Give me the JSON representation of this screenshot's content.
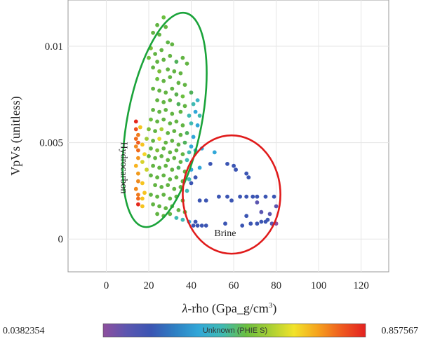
{
  "chart_data": {
    "type": "scatter",
    "xlabel_symbol": "λ",
    "xlabel_text": "-rho (Gpa_g/cm",
    "xlabel_sup": "3",
    "xlabel_close": ")",
    "ylabel": "VpVs (unitless)",
    "xlim": [
      -18,
      133
    ],
    "ylim": [
      -0.0017,
      0.0124
    ],
    "xticks": [
      0,
      20,
      40,
      60,
      80,
      100,
      120
    ],
    "xtick_labels": [
      "0",
      "20",
      "40",
      "60",
      "80",
      "100",
      "120"
    ],
    "yticks": [
      0,
      0.005,
      0.01
    ],
    "ytick_labels": [
      "0",
      "0.005",
      "0.01"
    ],
    "grid": true,
    "annotations": [
      {
        "text": "Hydrocarbon",
        "x": 7,
        "y": 0.0037,
        "rotate": 90
      },
      {
        "text": "Brine",
        "x": 56,
        "y": 0.00015
      }
    ],
    "ellipses": [
      {
        "name": "hydrocarbon-ellipse",
        "color": "#1aa33a",
        "cx": 27.5,
        "cy": 0.00618,
        "rx": 17.5,
        "ry": 0.00565,
        "rotate": 11
      },
      {
        "name": "brine-ellipse",
        "color": "#e01b1b",
        "cx": 59,
        "cy": 0.00231,
        "rx": 23,
        "ry": 0.00307,
        "rotate": 0
      }
    ],
    "colorbar": {
      "min_label": "0.0382354",
      "max_label": "0.857567",
      "title": "Unknown (PHIE S)",
      "stops": [
        "#8e4f9e",
        "#5b56b0",
        "#3b55b3",
        "#2e7fc3",
        "#31a7d8",
        "#3fbab2",
        "#6bbf3f",
        "#a8cf34",
        "#f2e32a",
        "#f6a21d",
        "#ef5a1f",
        "#e32121"
      ]
    },
    "series": [
      {
        "values": [
          [
            14,
            0.0061,
            "#e5281c"
          ],
          [
            14,
            0.0057,
            "#ef4e1c"
          ],
          [
            15,
            0.0054,
            "#f07c1d"
          ],
          [
            14,
            0.0052,
            "#f06a1c"
          ],
          [
            15,
            0.005,
            "#ee5a1e"
          ],
          [
            14,
            0.0048,
            "#f28a1e"
          ],
          [
            15,
            0.0046,
            "#ef6a1c"
          ],
          [
            15,
            0.0042,
            "#f3951e"
          ],
          [
            14,
            0.0038,
            "#f8b420"
          ],
          [
            15,
            0.0034,
            "#f19a1c"
          ],
          [
            15,
            0.003,
            "#ef8a1c"
          ],
          [
            14,
            0.0026,
            "#f28a1c"
          ],
          [
            15,
            0.0023,
            "#ef7a1c"
          ],
          [
            15,
            0.0021,
            "#f06a1c"
          ],
          [
            15,
            0.0018,
            "#e5281c"
          ],
          [
            16,
            0.0058,
            "#f6c41f"
          ],
          [
            17,
            0.0049,
            "#f6c41f"
          ],
          [
            18,
            0.0044,
            "#f4d428"
          ],
          [
            17,
            0.004,
            "#d7d22c"
          ],
          [
            19,
            0.0036,
            "#c9d32e"
          ],
          [
            17,
            0.0029,
            "#f6c41f"
          ],
          [
            18,
            0.0024,
            "#f6c41f"
          ],
          [
            17,
            0.0021,
            "#f6c41f"
          ],
          [
            17,
            0.0017,
            "#f6c41f"
          ],
          [
            22,
            0.0107,
            "#62b443"
          ],
          [
            24,
            0.0111,
            "#62b443"
          ],
          [
            27,
            0.0115,
            "#6bbf3f"
          ],
          [
            28,
            0.011,
            "#62b443"
          ],
          [
            25,
            0.0106,
            "#62b443"
          ],
          [
            21,
            0.0099,
            "#7bbd3a"
          ],
          [
            23,
            0.0096,
            "#62b443"
          ],
          [
            26,
            0.0098,
            "#62b443"
          ],
          [
            29,
            0.0102,
            "#5db446"
          ],
          [
            31,
            0.0101,
            "#62b443"
          ],
          [
            20,
            0.0094,
            "#6bbf3f"
          ],
          [
            24,
            0.0092,
            "#62b443"
          ],
          [
            27,
            0.0093,
            "#62b443"
          ],
          [
            30,
            0.0095,
            "#62b443"
          ],
          [
            33,
            0.0092,
            "#4fb05a"
          ],
          [
            36,
            0.0094,
            "#62b443"
          ],
          [
            38,
            0.0091,
            "#62b443"
          ],
          [
            22,
            0.0089,
            "#62b443"
          ],
          [
            25,
            0.0087,
            "#7bbd3a"
          ],
          [
            29,
            0.0088,
            "#62b443"
          ],
          [
            32,
            0.0087,
            "#62b443"
          ],
          [
            35,
            0.0086,
            "#62b443"
          ],
          [
            24,
            0.0083,
            "#6bbf3f"
          ],
          [
            27,
            0.0082,
            "#62b443"
          ],
          [
            30,
            0.0084,
            "#62b443"
          ],
          [
            34,
            0.0081,
            "#62b443"
          ],
          [
            37,
            0.008,
            "#62b443"
          ],
          [
            22,
            0.0078,
            "#62b443"
          ],
          [
            25,
            0.0077,
            "#62b443"
          ],
          [
            28,
            0.0076,
            "#62b443"
          ],
          [
            31,
            0.0078,
            "#62b443"
          ],
          [
            33,
            0.0075,
            "#5aaf4f"
          ],
          [
            36,
            0.0074,
            "#6bbf3f"
          ],
          [
            40,
            0.0076,
            "#4fb05a"
          ],
          [
            24,
            0.0072,
            "#62b443"
          ],
          [
            27,
            0.0071,
            "#62b443"
          ],
          [
            30,
            0.0072,
            "#62b443"
          ],
          [
            34,
            0.007,
            "#4fb05a"
          ],
          [
            37,
            0.0069,
            "#62b443"
          ],
          [
            41,
            0.007,
            "#3fbab2"
          ],
          [
            43,
            0.0072,
            "#3fb5c7"
          ],
          [
            22,
            0.0067,
            "#62b443"
          ],
          [
            25,
            0.0066,
            "#62b443"
          ],
          [
            28,
            0.0067,
            "#62b443"
          ],
          [
            31,
            0.0065,
            "#62b443"
          ],
          [
            35,
            0.0066,
            "#62b443"
          ],
          [
            39,
            0.0064,
            "#3fbab2"
          ],
          [
            42,
            0.0066,
            "#31a7d8"
          ],
          [
            44,
            0.0064,
            "#3fbab2"
          ],
          [
            21,
            0.0062,
            "#6bbf3f"
          ],
          [
            24,
            0.0061,
            "#62b443"
          ],
          [
            27,
            0.0062,
            "#62b443"
          ],
          [
            30,
            0.006,
            "#62b443"
          ],
          [
            33,
            0.0061,
            "#62b443"
          ],
          [
            36,
            0.0059,
            "#62b443"
          ],
          [
            40,
            0.006,
            "#3fbab2"
          ],
          [
            43,
            0.0059,
            "#31a7d8"
          ],
          [
            20,
            0.0057,
            "#7bbd3a"
          ],
          [
            23,
            0.0056,
            "#62b443"
          ],
          [
            26,
            0.0057,
            "#a8cf34"
          ],
          [
            29,
            0.0055,
            "#62b443"
          ],
          [
            32,
            0.0056,
            "#62b443"
          ],
          [
            35,
            0.0054,
            "#62b443"
          ],
          [
            38,
            0.0055,
            "#4fb05a"
          ],
          [
            41,
            0.0053,
            "#31a7d8"
          ],
          [
            19,
            0.0052,
            "#9ccb38"
          ],
          [
            22,
            0.0051,
            "#62b443"
          ],
          [
            25,
            0.0052,
            "#e8d82c"
          ],
          [
            28,
            0.005,
            "#62b443"
          ],
          [
            31,
            0.0051,
            "#62b443"
          ],
          [
            34,
            0.0049,
            "#62b443"
          ],
          [
            37,
            0.005,
            "#4fb05a"
          ],
          [
            40,
            0.0048,
            "#31a7d8"
          ],
          [
            21,
            0.0047,
            "#62b443"
          ],
          [
            24,
            0.0046,
            "#7bbd3a"
          ],
          [
            27,
            0.0047,
            "#62b443"
          ],
          [
            30,
            0.0045,
            "#62b443"
          ],
          [
            33,
            0.0046,
            "#62b443"
          ],
          [
            36,
            0.0044,
            "#62b443"
          ],
          [
            39,
            0.0045,
            "#3fbab2"
          ],
          [
            42,
            0.0046,
            "#31a7d8"
          ],
          [
            20,
            0.0043,
            "#62b443"
          ],
          [
            23,
            0.0042,
            "#62b443"
          ],
          [
            26,
            0.0043,
            "#62b443"
          ],
          [
            29,
            0.0041,
            "#62b443"
          ],
          [
            32,
            0.0042,
            "#62b443"
          ],
          [
            35,
            0.004,
            "#62b443"
          ],
          [
            38,
            0.0041,
            "#3fbab2"
          ],
          [
            22,
            0.0038,
            "#62b443"
          ],
          [
            25,
            0.0037,
            "#62b443"
          ],
          [
            28,
            0.0038,
            "#62b443"
          ],
          [
            31,
            0.0036,
            "#62b443"
          ],
          [
            34,
            0.0037,
            "#4fb05a"
          ],
          [
            37,
            0.0035,
            "#62b443"
          ],
          [
            40,
            0.0036,
            "#31a7d8"
          ],
          [
            21,
            0.0033,
            "#62b443"
          ],
          [
            24,
            0.0032,
            "#62b443"
          ],
          [
            27,
            0.0033,
            "#62b443"
          ],
          [
            30,
            0.0031,
            "#62b443"
          ],
          [
            33,
            0.0032,
            "#62b443"
          ],
          [
            36,
            0.003,
            "#62b443"
          ],
          [
            39,
            0.0031,
            "#3fbab2"
          ],
          [
            23,
            0.0028,
            "#62b443"
          ],
          [
            26,
            0.0027,
            "#62b443"
          ],
          [
            29,
            0.0028,
            "#62b443"
          ],
          [
            32,
            0.0026,
            "#62b443"
          ],
          [
            35,
            0.0027,
            "#62b443"
          ],
          [
            38,
            0.0025,
            "#3fbab2"
          ],
          [
            21,
            0.0023,
            "#62b443"
          ],
          [
            24,
            0.0022,
            "#62b443"
          ],
          [
            27,
            0.0023,
            "#62b443"
          ],
          [
            30,
            0.0021,
            "#62b443"
          ],
          [
            33,
            0.0022,
            "#62b443"
          ],
          [
            36,
            0.002,
            "#62b443"
          ],
          [
            22,
            0.0018,
            "#62b443"
          ],
          [
            25,
            0.0017,
            "#62b443"
          ],
          [
            28,
            0.0016,
            "#62b443"
          ],
          [
            31,
            0.0017,
            "#62b443"
          ],
          [
            34,
            0.0015,
            "#62b443"
          ],
          [
            37,
            0.0014,
            "#62b443"
          ],
          [
            24,
            0.0013,
            "#62b443"
          ],
          [
            27,
            0.0012,
            "#62b443"
          ],
          [
            30,
            0.0013,
            "#62b443"
          ],
          [
            33,
            0.0011,
            "#3fbab2"
          ],
          [
            36,
            0.001,
            "#3fbab2"
          ],
          [
            39,
            0.0009,
            "#31a7d8"
          ],
          [
            41,
            0.0007,
            "#3b55b3"
          ],
          [
            43,
            0.0007,
            "#3b55b3"
          ],
          [
            45,
            0.0007,
            "#3b55b3"
          ],
          [
            42,
            0.0009,
            "#3b55b3"
          ],
          [
            44,
            0.0037,
            "#31a7d8"
          ],
          [
            42,
            0.0032,
            "#3b55b3"
          ],
          [
            40,
            0.0029,
            "#3b55b3"
          ],
          [
            44,
            0.002,
            "#3b55b3"
          ],
          [
            47,
            0.002,
            "#3b55b3"
          ],
          [
            51,
            0.0045,
            "#31a7d8"
          ],
          [
            45,
            0.0047,
            "#31a7d8"
          ],
          [
            57,
            0.0039,
            "#3b55b3"
          ],
          [
            49,
            0.0039,
            "#3b55b3"
          ],
          [
            60,
            0.0038,
            "#3b55b3"
          ],
          [
            61,
            0.0036,
            "#3b55b3"
          ],
          [
            66,
            0.0034,
            "#3b55b3"
          ],
          [
            67,
            0.0032,
            "#3b55b3"
          ],
          [
            53,
            0.0022,
            "#3b55b3"
          ],
          [
            57,
            0.0022,
            "#3b55b3"
          ],
          [
            59,
            0.002,
            "#3b55b3"
          ],
          [
            63,
            0.0022,
            "#3b55b3"
          ],
          [
            66,
            0.0022,
            "#3b55b3"
          ],
          [
            69,
            0.0022,
            "#3b55b3"
          ],
          [
            71,
            0.0022,
            "#3b55b3"
          ],
          [
            75,
            0.0022,
            "#3b55b3"
          ],
          [
            79,
            0.0022,
            "#3b55b3"
          ],
          [
            80,
            0.0017,
            "#5b56b0"
          ],
          [
            71,
            0.0019,
            "#5b56b0"
          ],
          [
            73,
            0.0014,
            "#5b56b0"
          ],
          [
            77,
            0.0013,
            "#5b56b0"
          ],
          [
            66,
            0.0012,
            "#3b55b3"
          ],
          [
            68,
            0.0008,
            "#3b55b3"
          ],
          [
            71,
            0.0008,
            "#3b55b3"
          ],
          [
            73,
            0.0009,
            "#3b55b3"
          ],
          [
            75,
            0.0009,
            "#3b55b3"
          ],
          [
            76,
            0.001,
            "#3b55b3"
          ],
          [
            78,
            0.0008,
            "#5b56b0"
          ],
          [
            56,
            0.0008,
            "#3b55b3"
          ],
          [
            64,
            0.0007,
            "#3b55b3"
          ],
          [
            47,
            0.0007,
            "#3b55b3"
          ],
          [
            80,
            0.0008,
            "#8e4f9e"
          ]
        ]
      }
    ]
  }
}
